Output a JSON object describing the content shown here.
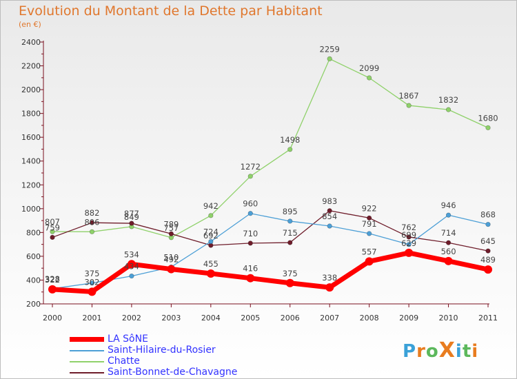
{
  "title": "Evolution du Montant de la Dette par Habitant",
  "subtitle": "(en €)",
  "logo": {
    "text": "ProXiti",
    "letters": [
      "P",
      "r",
      "o",
      "X",
      "i",
      "t",
      "i"
    ],
    "colors": [
      "#3aa1d8",
      "#e87c1f",
      "#5cb85c",
      "#e87c1f",
      "#3aa1d8",
      "#5cb85c",
      "#e87c1f"
    ]
  },
  "chart_data": {
    "type": "line",
    "title": "Evolution du Montant de la Dette par Habitant",
    "subtitle": "(en €)",
    "x": [
      "2000",
      "2001",
      "2002",
      "2003",
      "2004",
      "2005",
      "2006",
      "2007",
      "2008",
      "2009",
      "2010",
      "2011"
    ],
    "ylim": [
      200,
      2400
    ],
    "yticks": [
      200,
      400,
      600,
      800,
      1000,
      1200,
      1400,
      1600,
      1800,
      2000,
      2200,
      2400
    ],
    "grid": false,
    "legend_position": "bottom-left",
    "series": [
      {
        "name": "LA SôNE",
        "color": "#ff0000",
        "width": 7,
        "values": [
          322,
          302,
          534,
          492,
          455,
          416,
          375,
          338,
          557,
          629,
          560,
          489
        ]
      },
      {
        "name": "Saint-Hilaire-du-Rosier",
        "color": "#4c9fd6",
        "width": 1.3,
        "values": [
          328,
          375,
          434,
          510,
          724,
          960,
          895,
          854,
          791,
          699,
          946,
          868
        ]
      },
      {
        "name": "Chatte",
        "color": "#8fd16a",
        "width": 1.3,
        "values": [
          807,
          806,
          849,
          757,
          942,
          1272,
          1498,
          2259,
          2099,
          1867,
          1832,
          1680
        ]
      },
      {
        "name": "Saint-Bonnet-de-Chavagne",
        "color": "#6e1c2a",
        "width": 1.3,
        "values": [
          759,
          882,
          877,
          789,
          692,
          710,
          715,
          983,
          922,
          762,
          714,
          645
        ]
      }
    ]
  }
}
